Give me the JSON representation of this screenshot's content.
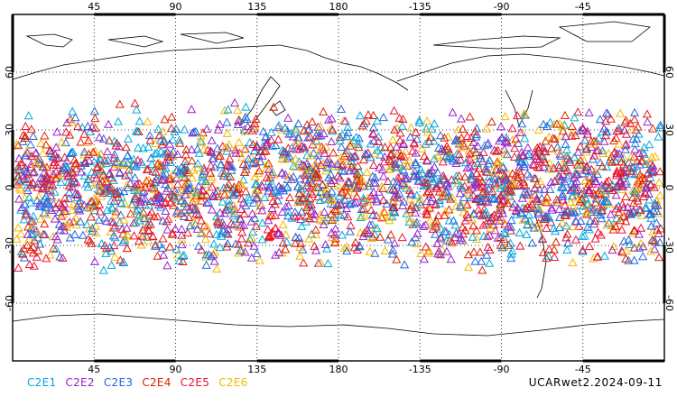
{
  "map": {
    "lon_ticks": [
      45,
      90,
      135,
      180,
      -135,
      -90,
      -45
    ],
    "lat_ticks": [
      60,
      30,
      0,
      -30,
      -60
    ],
    "lon_range": [
      0,
      360
    ],
    "lat_range": [
      -90,
      90
    ],
    "grid": "dotted",
    "marker": "triangle",
    "point_band_lat": [
      -45,
      45
    ]
  },
  "legend": [
    {
      "label": "C2E1",
      "color": "#00aadd"
    },
    {
      "label": "C2E2",
      "color": "#9922cc"
    },
    {
      "label": "C2E3",
      "color": "#2266dd"
    },
    {
      "label": "C2E4",
      "color": "#dd2200"
    },
    {
      "label": "C2E5",
      "color": "#ee1133"
    },
    {
      "label": "C2E6",
      "color": "#f5b800"
    }
  ],
  "footer": {
    "dataset_date": "UCARwet2.2024-09-11"
  }
}
